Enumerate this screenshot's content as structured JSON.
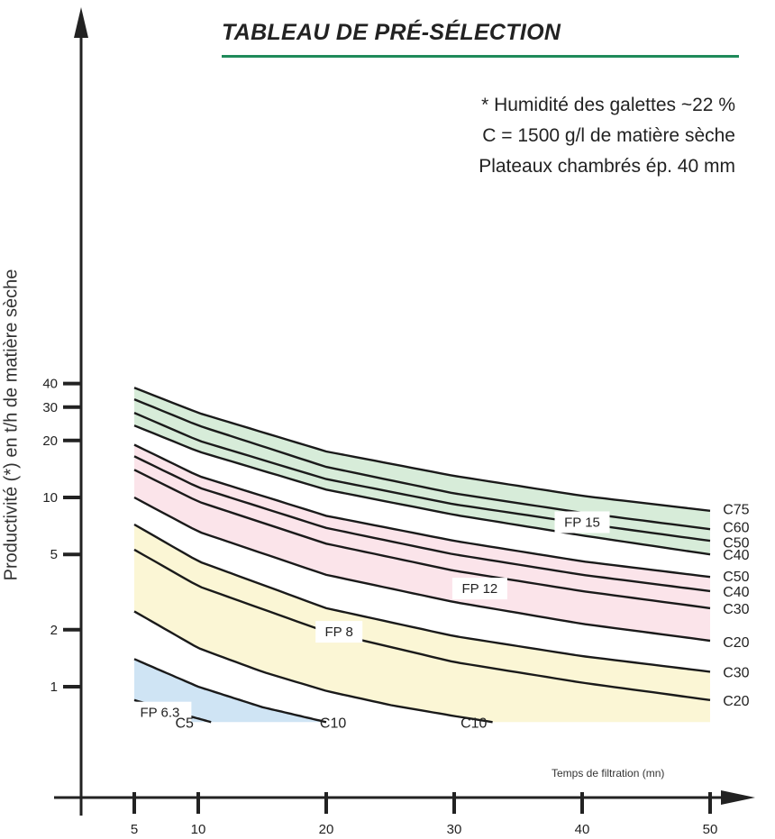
{
  "chart_data": {
    "type": "line",
    "title": "TABLEAU DE PRÉ-SÉLECTION",
    "notes": [
      "* Humidité des galettes ~22 %",
      "C = 1500 g/l de matière sèche",
      "Plateaux chambrés ép. 40 mm"
    ],
    "xlabel": "Temps de filtration (mn)",
    "ylabel": "Productivité (*) en t/h de matière sèche",
    "x_scale": "linear",
    "y_scale": "log",
    "xlim": [
      0,
      50
    ],
    "ylim": [
      0.5,
      60
    ],
    "x_ticks": [
      5,
      10,
      20,
      30,
      40,
      50
    ],
    "y_ticks": [
      1,
      2,
      5,
      10,
      20,
      30,
      40
    ],
    "grid": false,
    "bands": [
      {
        "name": "FP 15",
        "color": "#d7ecd9",
        "x_range": [
          5,
          50
        ],
        "upper": "C75",
        "lower": "C40"
      },
      {
        "name": "FP 12",
        "color": "#fbe4ea",
        "x_range": [
          5,
          50
        ],
        "upper": "C50",
        "lower": "C20"
      },
      {
        "name": "FP 8",
        "color": "#fbf6d5",
        "x_range": [
          5,
          50
        ],
        "upper": "C30",
        "lower": "C10"
      },
      {
        "name": "FP 6.3",
        "color": "#cfe4f4",
        "x_range": [
          5,
          20
        ],
        "upper": "C10",
        "lower": "C5"
      }
    ],
    "band_labels": [
      {
        "text": "FP 15",
        "x": 40,
        "y": 7.4
      },
      {
        "text": "FP 12",
        "x": 32,
        "y": 3.3
      },
      {
        "text": "FP 8",
        "x": 21,
        "y": 1.95
      },
      {
        "text": "FP 6.3",
        "x": 7,
        "y": 0.73
      }
    ],
    "series": [
      {
        "name": "C75",
        "family": "FP 15",
        "x": [
          5,
          10,
          20,
          30,
          40,
          50
        ],
        "y": [
          38,
          28,
          17.5,
          13,
          10.2,
          8.5
        ]
      },
      {
        "name": "C60",
        "family": "FP 15",
        "x": [
          5,
          10,
          20,
          30,
          40,
          50
        ],
        "y": [
          33,
          24,
          14.5,
          10.5,
          8.3,
          6.8
        ]
      },
      {
        "name": "C50",
        "family": "FP 15",
        "x": [
          5,
          10,
          20,
          30,
          40,
          50
        ],
        "y": [
          28,
          20,
          12.5,
          9.2,
          7.3,
          5.9
        ]
      },
      {
        "name": "C40",
        "family": "FP 15",
        "x": [
          5,
          10,
          20,
          30,
          40,
          50
        ],
        "y": [
          24,
          17.5,
          11,
          8.1,
          6.3,
          5.0
        ]
      },
      {
        "name": "C50",
        "family": "FP 12",
        "x": [
          5,
          10,
          20,
          30,
          40,
          50
        ],
        "y": [
          19,
          13,
          8,
          5.9,
          4.6,
          3.8
        ]
      },
      {
        "name": "C40",
        "family": "FP 12",
        "x": [
          5,
          10,
          20,
          30,
          40,
          50
        ],
        "y": [
          16.5,
          11.3,
          6.9,
          5.0,
          3.9,
          3.2
        ]
      },
      {
        "name": "C30",
        "family": "FP 12",
        "x": [
          5,
          10,
          20,
          30,
          40,
          50
        ],
        "y": [
          14,
          9.5,
          5.7,
          4.1,
          3.2,
          2.6
        ]
      },
      {
        "name": "C20",
        "family": "FP 12",
        "x": [
          5,
          10,
          20,
          30,
          40,
          50
        ],
        "y": [
          10,
          6.6,
          3.9,
          2.8,
          2.15,
          1.75
        ]
      },
      {
        "name": "C30",
        "family": "FP 8",
        "x": [
          5,
          10,
          20,
          30,
          40,
          50
        ],
        "y": [
          7.2,
          4.6,
          2.6,
          1.85,
          1.45,
          1.2
        ]
      },
      {
        "name": "C20",
        "family": "FP 8",
        "x": [
          5,
          10,
          20,
          30,
          40,
          50
        ],
        "y": [
          5.3,
          3.4,
          1.95,
          1.35,
          1.05,
          0.85
        ]
      },
      {
        "name": "C10",
        "family": "FP 8",
        "x": [
          5,
          10,
          15,
          20,
          25,
          30,
          33
        ],
        "y": [
          2.5,
          1.6,
          1.2,
          0.95,
          0.8,
          0.7,
          0.65
        ]
      },
      {
        "name": "C10",
        "family": "FP 6.3",
        "x": [
          5,
          10,
          15,
          20
        ],
        "y": [
          1.4,
          1.0,
          0.78,
          0.65
        ]
      },
      {
        "name": "C5",
        "family": "FP 6.3",
        "x": [
          5,
          8,
          11
        ],
        "y": [
          0.85,
          0.74,
          0.65
        ]
      }
    ],
    "end_labels": [
      {
        "text": "C75",
        "x": 51,
        "y": 8.7
      },
      {
        "text": "C60",
        "x": 51,
        "y": 7.0
      },
      {
        "text": "C50",
        "x": 51,
        "y": 5.8
      },
      {
        "text": "C40",
        "x": 51,
        "y": 5.0
      },
      {
        "text": "C50",
        "x": 51,
        "y": 3.85
      },
      {
        "text": "C40",
        "x": 51,
        "y": 3.2
      },
      {
        "text": "C30",
        "x": 51,
        "y": 2.6
      },
      {
        "text": "C20",
        "x": 51,
        "y": 1.73
      },
      {
        "text": "C30",
        "x": 51,
        "y": 1.2
      },
      {
        "text": "C20",
        "x": 51,
        "y": 0.85
      },
      {
        "text": "C10",
        "x": 30.5,
        "y": 0.65
      },
      {
        "text": "C10",
        "x": 19.5,
        "y": 0.65
      },
      {
        "text": "C5",
        "x": 8.2,
        "y": 0.65
      }
    ],
    "colors": {
      "axis": "#222222",
      "curve": "#1a1a1a",
      "accent": "#1f8a5a"
    }
  }
}
